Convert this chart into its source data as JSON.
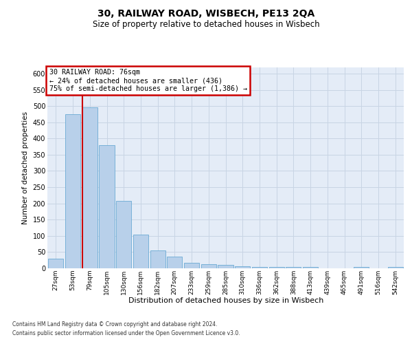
{
  "title1": "30, RAILWAY ROAD, WISBECH, PE13 2QA",
  "title2": "Size of property relative to detached houses in Wisbech",
  "xlabel": "Distribution of detached houses by size in Wisbech",
  "ylabel": "Number of detached properties",
  "bar_labels": [
    "27sqm",
    "53sqm",
    "79sqm",
    "105sqm",
    "130sqm",
    "156sqm",
    "182sqm",
    "207sqm",
    "233sqm",
    "259sqm",
    "285sqm",
    "310sqm",
    "336sqm",
    "362sqm",
    "388sqm",
    "413sqm",
    "439sqm",
    "465sqm",
    "491sqm",
    "516sqm",
    "542sqm"
  ],
  "bar_values": [
    30,
    475,
    495,
    380,
    207,
    103,
    55,
    37,
    18,
    13,
    10,
    7,
    5,
    4,
    4,
    4,
    1,
    0,
    4,
    1,
    4
  ],
  "bar_color": "#b8d0ea",
  "bar_edge_color": "#6aaad4",
  "property_bar_index": 2,
  "annotation_line1": "30 RAILWAY ROAD: 76sqm",
  "annotation_line2": "← 24% of detached houses are smaller (436)",
  "annotation_line3": "75% of semi-detached houses are larger (1,386) →",
  "red_line_color": "#cc0000",
  "grid_color": "#c8d4e4",
  "plot_bg_color": "#e4ecf7",
  "ylim_max": 620,
  "yticks": [
    0,
    50,
    100,
    150,
    200,
    250,
    300,
    350,
    400,
    450,
    500,
    550,
    600
  ],
  "footnote1": "Contains HM Land Registry data © Crown copyright and database right 2024.",
  "footnote2": "Contains public sector information licensed under the Open Government Licence v3.0."
}
